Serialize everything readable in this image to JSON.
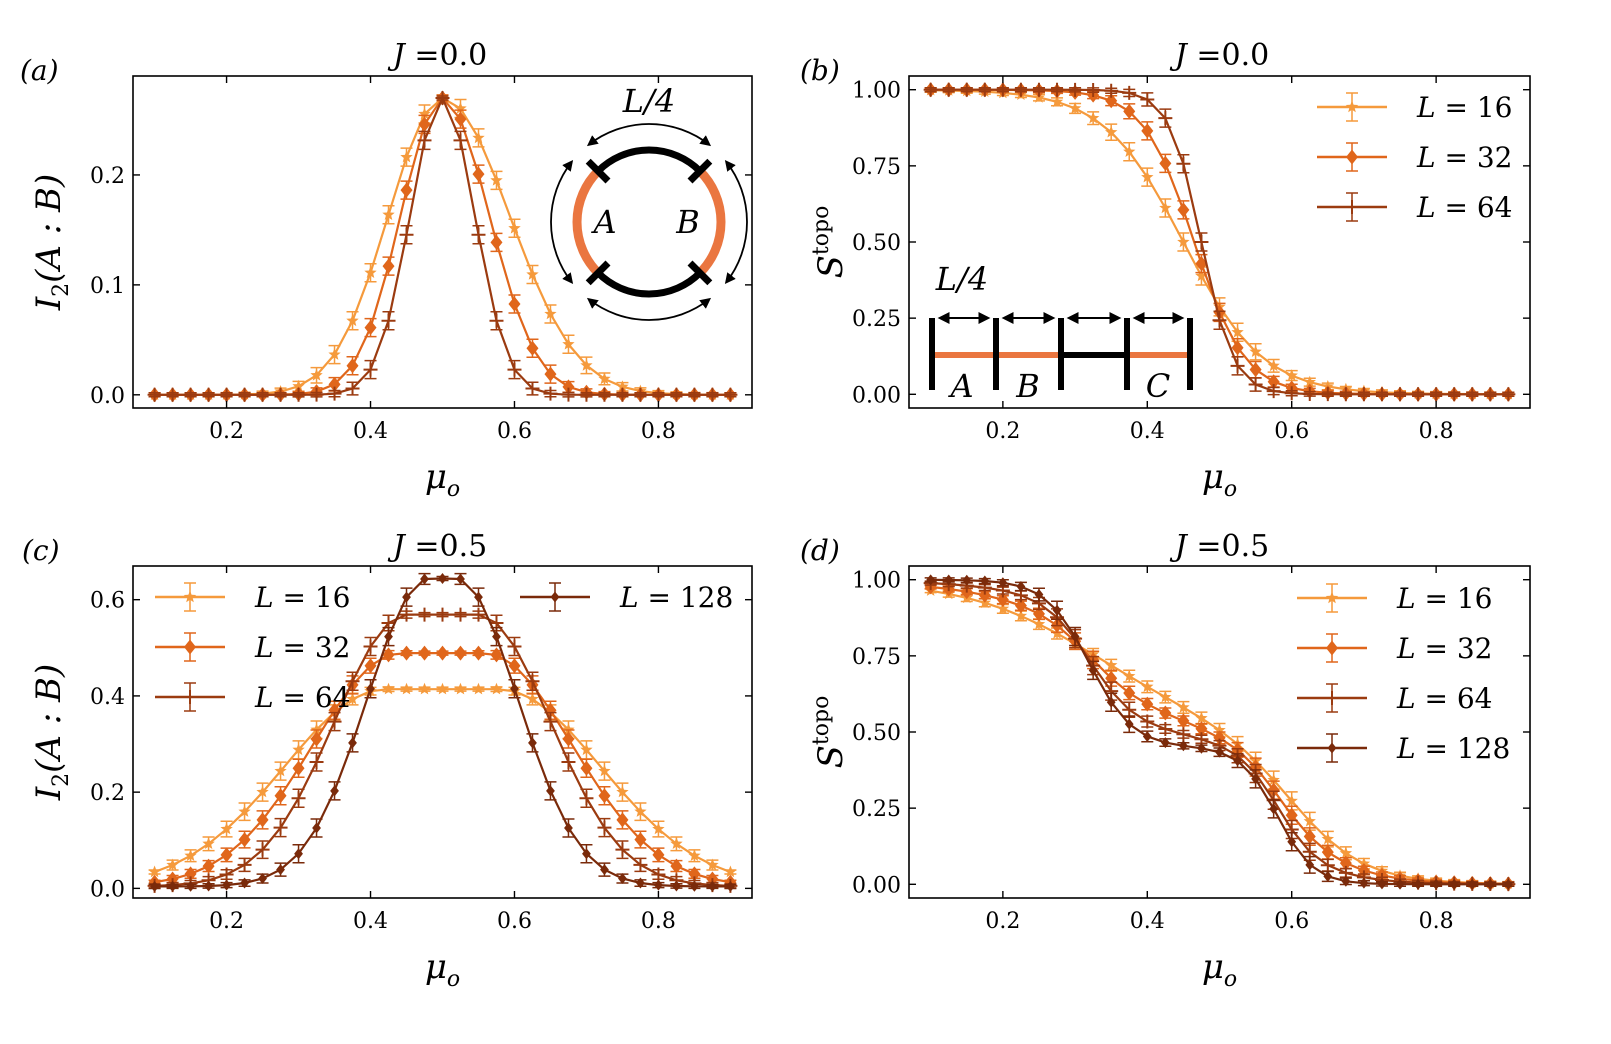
{
  "colors": {
    "L16": "#f59a3c",
    "L32": "#e0661b",
    "L64": "#9b3b10",
    "L128": "#7a2a0a",
    "insetOrange": "#ea7640",
    "axis": "#000000"
  },
  "axis_symbols": {
    "x_sym": "μ",
    "x_sub": "o",
    "i_sym": "I",
    "i_sub": "2",
    "i_arg": "(A : B)",
    "s_sym": "S",
    "s_sup": "topo"
  },
  "inset_labels": {
    "L4": "L/4",
    "A": "A",
    "B": "B",
    "C": "C"
  },
  "chart_data": [
    {
      "id": "a",
      "type": "line",
      "panel_label": "(a)",
      "title_var": "J",
      "title_eq": " =",
      "title_val": "0.0",
      "xlabel": "μ_o",
      "ylabel": "I_2(A : B)",
      "xlim": [
        0.07,
        0.93
      ],
      "ylim": [
        -0.012,
        0.29
      ],
      "xticks": [
        "0.2",
        "0.4",
        "0.6",
        "0.8"
      ],
      "yticks": [
        "0.0",
        "0.1",
        "0.2"
      ],
      "series": [
        {
          "name": "L = 16",
          "color": "L16",
          "marker": "star",
          "peak": 0.27,
          "width": 0.075,
          "skew": 0.08
        },
        {
          "name": "L = 32",
          "color": "L32",
          "marker": "diamond",
          "peak": 0.27,
          "width": 0.058,
          "skew": 0.04
        },
        {
          "name": "L = 64",
          "color": "L64",
          "marker": "plus",
          "peak": 0.27,
          "width": 0.045,
          "skew": 0.0
        }
      ]
    },
    {
      "id": "b",
      "type": "line",
      "panel_label": "(b)",
      "title_var": "J",
      "title_eq": " =",
      "title_val": "0.0",
      "xlabel": "μ_o",
      "ylabel": "S^topo",
      "xlim": [
        0.07,
        0.93
      ],
      "ylim": [
        -0.045,
        1.045
      ],
      "xticks": [
        "0.2",
        "0.4",
        "0.6",
        "0.8"
      ],
      "yticks": [
        "0.00",
        "0.25",
        "0.50",
        "0.75",
        "1.00"
      ],
      "legend": "top-right",
      "series": [
        {
          "name": "L = 16",
          "color": "L16",
          "marker": "star",
          "center": 0.45,
          "scale": 0.055
        },
        {
          "name": "L = 32",
          "color": "L32",
          "marker": "diamond",
          "center": 0.465,
          "scale": 0.035
        },
        {
          "name": "L = 64",
          "color": "L64",
          "marker": "plus",
          "center": 0.475,
          "scale": 0.022
        }
      ]
    },
    {
      "id": "c",
      "type": "line",
      "panel_label": "(c)",
      "title_var": "J",
      "title_eq": " =",
      "title_val": "0.5",
      "xlabel": "μ_o",
      "ylabel": "I_2(A : B)",
      "xlim": [
        0.07,
        0.93
      ],
      "ylim": [
        -0.02,
        0.67
      ],
      "xticks": [
        "0.2",
        "0.4",
        "0.6",
        "0.8"
      ],
      "yticks": [
        "0.0",
        "0.2",
        "0.4",
        "0.6"
      ],
      "legend": "top",
      "series": [
        {
          "name": "L = 16",
          "color": "L16",
          "marker": "star",
          "peak": 0.41,
          "width": 0.14,
          "plateau": 0.08
        },
        {
          "name": "L = 32",
          "color": "L32",
          "marker": "diamond",
          "peak": 0.485,
          "width": 0.12,
          "plateau": 0.06
        },
        {
          "name": "L = 64",
          "color": "L64",
          "marker": "plus",
          "peak": 0.565,
          "width": 0.1,
          "plateau": 0.05
        },
        {
          "name": "L = 128",
          "color": "L128",
          "marker": "diamond-small",
          "peak": 0.64,
          "width": 0.085,
          "plateau": 0.02
        }
      ]
    },
    {
      "id": "d",
      "type": "line",
      "panel_label": "(d)",
      "title_var": "J",
      "title_eq": " =",
      "title_val": "0.5",
      "xlabel": "μ_o",
      "ylabel": "S^topo",
      "xlim": [
        0.07,
        0.93
      ],
      "ylim": [
        -0.045,
        1.045
      ],
      "xticks": [
        "0.2",
        "0.4",
        "0.6",
        "0.8"
      ],
      "yticks": [
        "0.00",
        "0.25",
        "0.50",
        "0.75",
        "1.00"
      ],
      "legend": "right",
      "series": [
        {
          "name": "L = 16",
          "color": "L16",
          "marker": "star",
          "sharp": 0.0
        },
        {
          "name": "L = 32",
          "color": "L32",
          "marker": "diamond",
          "sharp": 0.35
        },
        {
          "name": "L = 64",
          "color": "L64",
          "marker": "plus",
          "sharp": 0.7
        },
        {
          "name": "L = 128",
          "color": "L128",
          "marker": "diamond-small",
          "sharp": 1.0
        }
      ]
    }
  ]
}
